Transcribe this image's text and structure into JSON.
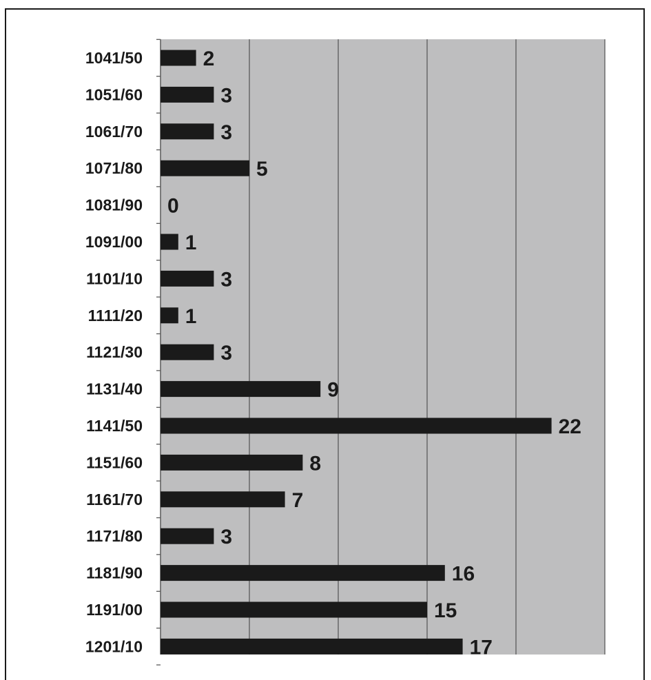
{
  "chart_data": {
    "type": "bar",
    "orientation": "horizontal",
    "categories": [
      "1041/50",
      "1051/60",
      "1061/70",
      "1071/80",
      "1081/90",
      "1091/00",
      "1101/10",
      "1111/20",
      "1121/30",
      "1131/40",
      "1141/50",
      "1151/60",
      "1161/70",
      "1171/80",
      "1181/90",
      "1191/00",
      "1201/10"
    ],
    "values": [
      2,
      3,
      3,
      5,
      0,
      1,
      3,
      1,
      3,
      9,
      22,
      8,
      7,
      3,
      16,
      15,
      17
    ],
    "title": "",
    "xlabel": "",
    "ylabel": "",
    "xlim": [
      0,
      25
    ],
    "grid": true,
    "legend": "none",
    "colors": {
      "bar": "#1a1a1a",
      "plot_background": "#bebebf",
      "gridline": "#5a5a5a",
      "text": "#1a1a1a",
      "frame": "#1a1a1a"
    }
  }
}
